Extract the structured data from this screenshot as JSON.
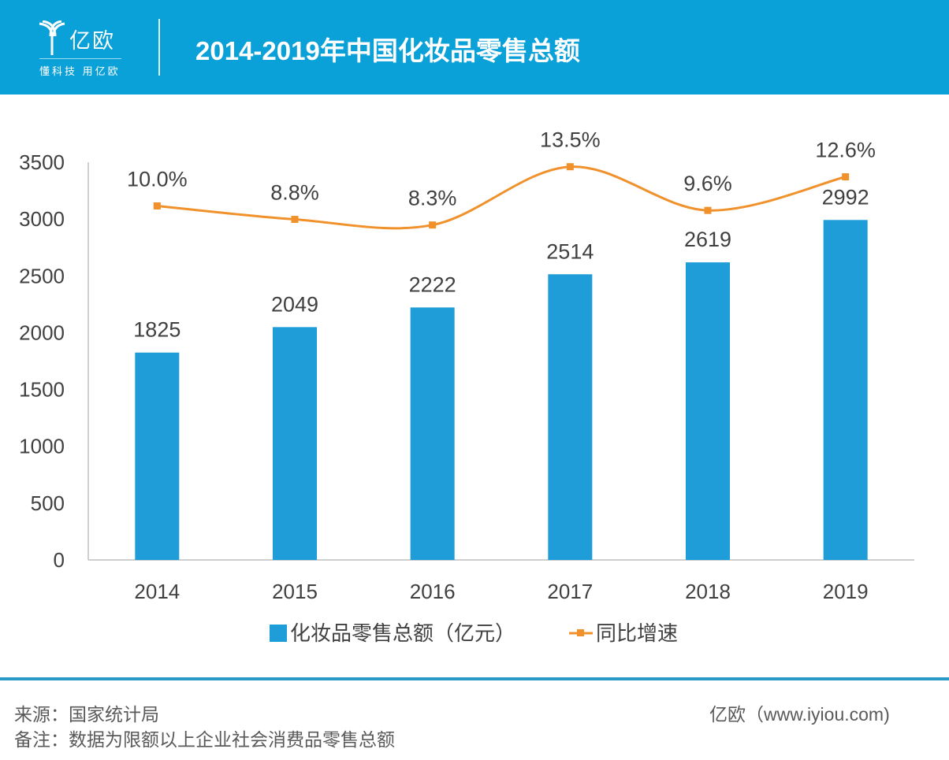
{
  "header": {
    "logo_name": "亿欧",
    "logo_slogan": "懂科技 用亿欧",
    "title": "2014-2019年中国化妆品零售总额"
  },
  "chart_data": {
    "type": "bar",
    "title": "2014-2019年中国化妆品零售总额",
    "categories": [
      "2014",
      "2015",
      "2016",
      "2017",
      "2018",
      "2019"
    ],
    "series": [
      {
        "name": "化妆品零售总额（亿元）",
        "type": "bar",
        "values": [
          1825,
          2049,
          2222,
          2514,
          2619,
          2992
        ],
        "labels": [
          "1825",
          "2049",
          "2222",
          "2514",
          "2619",
          "2992"
        ],
        "color": "#1e9dd8"
      },
      {
        "name": "同比增速",
        "type": "line",
        "axis": "secondary",
        "values": [
          10.0,
          8.8,
          8.3,
          13.5,
          9.6,
          12.6
        ],
        "labels": [
          "10.0%",
          "8.8%",
          "8.3%",
          "13.5%",
          "9.6%",
          "12.6%"
        ],
        "color": "#f0912b"
      }
    ],
    "ylim": [
      0,
      3500
    ],
    "yticks": [
      "0",
      "500",
      "1000",
      "1500",
      "2000",
      "2500",
      "3000",
      "3500"
    ],
    "y2lim": [
      -21.6,
      13.9
    ],
    "legend": "bottom",
    "grid": false
  },
  "footer": {
    "source": "来源：国家统计局",
    "note": "备注：数据为限额以上企业社会消费品零售总额",
    "credit": "亿欧（www.iyiou.com)"
  }
}
